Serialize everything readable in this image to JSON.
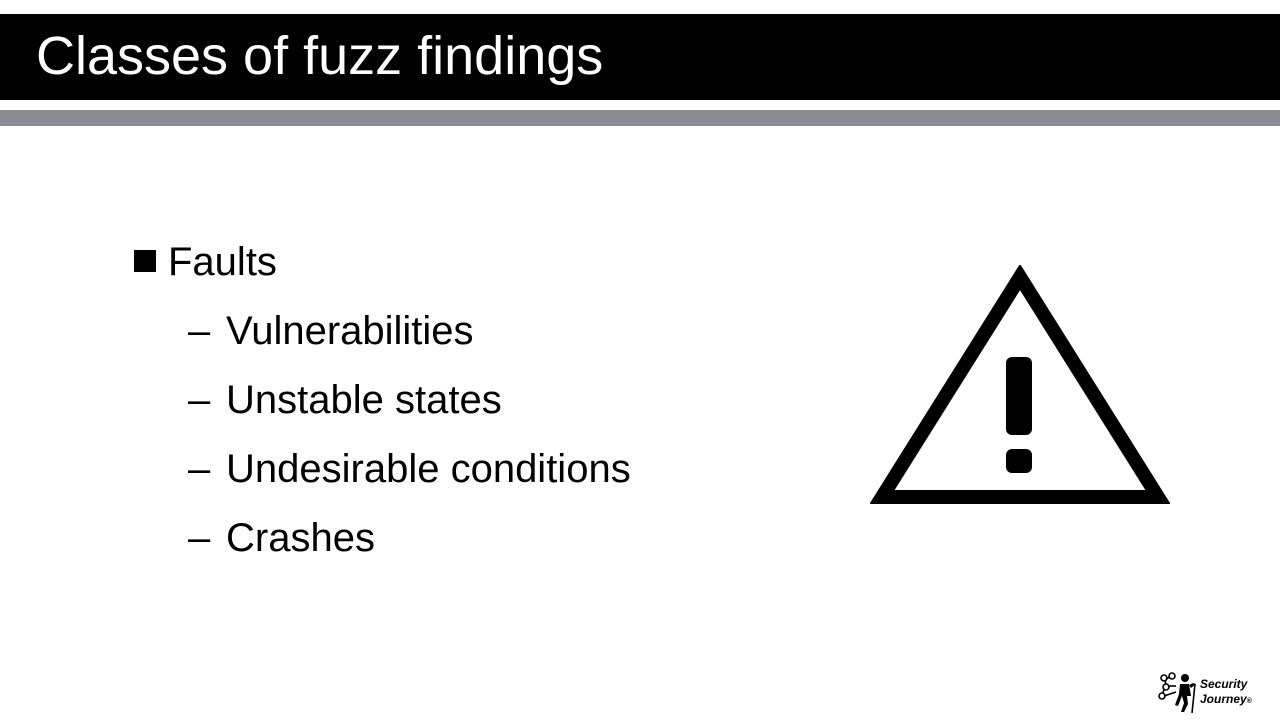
{
  "slide": {
    "title": "Classes of fuzz findings",
    "bullet": {
      "label": "Faults",
      "items": [
        "Vulnerabilities",
        "Unstable states",
        "Undesirable conditions",
        "Crashes"
      ]
    },
    "dash_glyph": "–",
    "icon": "warning-triangle-icon"
  },
  "logo": {
    "line1": "Security",
    "line2": "Journey",
    "reg": "®",
    "icon": "hiker-network-icon"
  },
  "colors": {
    "title_bar": "#000000",
    "title_text": "#ffffff",
    "rule": "#8a8d96",
    "body_text": "#000000"
  }
}
